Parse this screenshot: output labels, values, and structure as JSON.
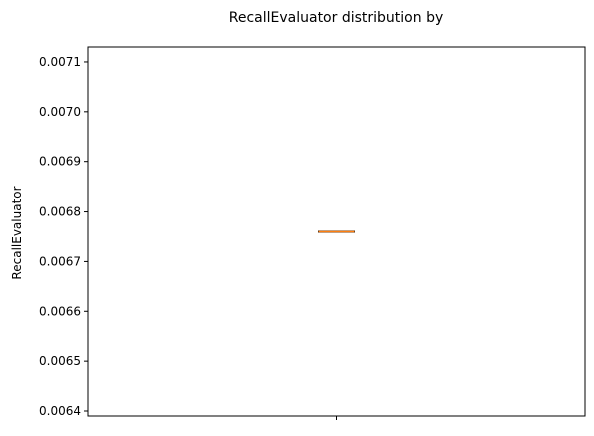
{
  "chart_data": {
    "type": "box",
    "title": "RecallEvaluator distribution by",
    "xlabel": "",
    "ylabel": "RecallEvaluator",
    "ylim": [
      0.00639,
      0.00713
    ],
    "yticks": [
      0.0064,
      0.0065,
      0.0066,
      0.0067,
      0.0068,
      0.0069,
      0.007,
      0.0071
    ],
    "ytick_labels": [
      "0.0064",
      "0.0065",
      "0.0066",
      "0.0067",
      "0.0068",
      "0.0069",
      "0.0070",
      "0.0071"
    ],
    "xticks": [
      1
    ],
    "xtick_labels": [
      ""
    ],
    "boxes": [
      {
        "position": 1,
        "min": 0.00676,
        "q1": 0.00676,
        "median": 0.00676,
        "q3": 0.00676,
        "max": 0.00676
      }
    ],
    "box_color": "#000000",
    "median_color": "#ff7f0e",
    "grid": false,
    "legend": "none"
  }
}
